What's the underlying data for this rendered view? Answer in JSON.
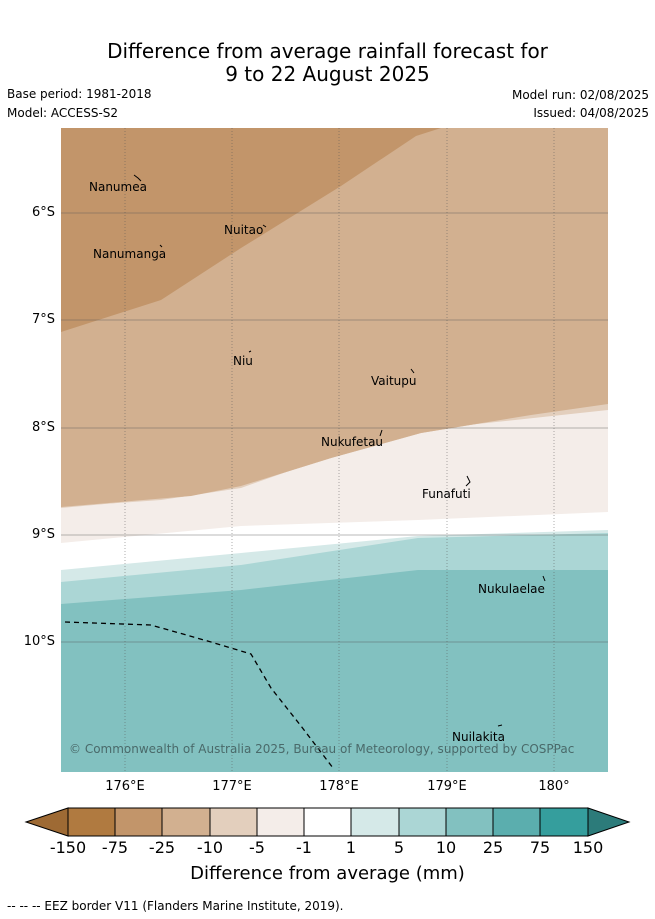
{
  "title_line1": "Difference from average rainfall forecast for",
  "title_line2": "9 to 22 August 2025",
  "base_period": "Base period: 1981-2018",
  "model": "Model: ACCESS-S2",
  "model_run": "Model run: 02/08/2025",
  "issued": "Issued: 04/08/2025",
  "copyright": "© Commonwealth of Australia 2025, Bureau of Meteorology, supported by COSPPac",
  "y_ticks": [
    "6°S",
    "7°S",
    "8°S",
    "9°S",
    "10°S"
  ],
  "x_ticks": [
    "176°E",
    "177°E",
    "178°E",
    "179°E",
    "180°"
  ],
  "islands": [
    "Nanumea",
    "Nuitao",
    "Nanumanga",
    "Niu",
    "Vaitupu",
    "Nukufetau",
    "Funafuti",
    "Nukulaelae",
    "Nuilakita"
  ],
  "colorbar": {
    "ticks": [
      "-150",
      "-75",
      "-25",
      "-10",
      "-5",
      "-1",
      "1",
      "5",
      "10",
      "25",
      "75",
      "150"
    ],
    "colors": [
      "#9e6a34",
      "#b07a40",
      "#c2956a",
      "#d2b090",
      "#e3cfbd",
      "#f4ede9",
      "#ffffff",
      "#d5e9e8",
      "#abd6d5",
      "#82c1c0",
      "#5baeae",
      "#359e9d",
      "#2c7b7a"
    ],
    "label": "Difference from average (mm)"
  },
  "footer": "--  --  -- EEZ border V11 (Flanders Marine Institute, 2019)."
}
